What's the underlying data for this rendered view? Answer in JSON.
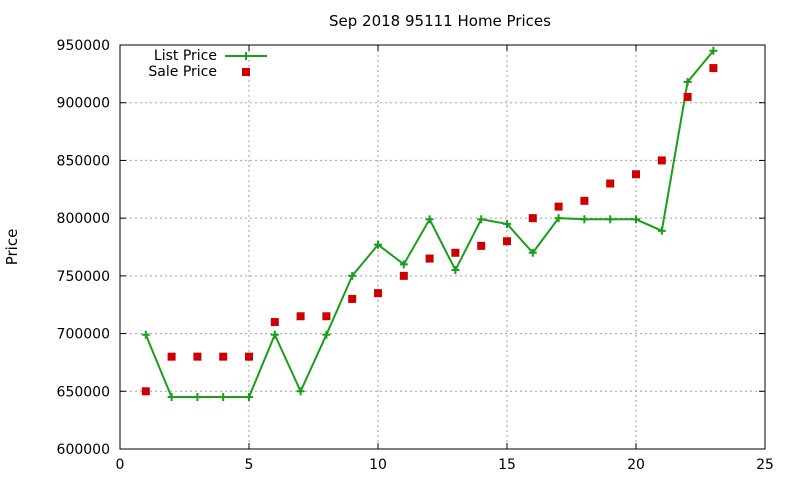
{
  "chart_data": {
    "type": "line",
    "title": "Sep 2018 95111 Home Prices",
    "xlabel": "",
    "ylabel": "Price",
    "xlim": [
      0,
      25
    ],
    "ylim": [
      600000,
      950000
    ],
    "x_ticks": [
      0,
      5,
      10,
      15,
      20,
      25
    ],
    "y_ticks": [
      600000,
      650000,
      700000,
      750000,
      800000,
      850000,
      900000,
      950000
    ],
    "grid": true,
    "legend_position": "top-left",
    "series": [
      {
        "name": "List Price",
        "style": "line-with-plus-markers",
        "color": "#1a9e1a",
        "x": [
          1,
          2,
          3,
          4,
          5,
          6,
          7,
          8,
          9,
          10,
          11,
          12,
          13,
          14,
          15,
          16,
          17,
          18,
          19,
          20,
          21,
          22,
          23
        ],
        "values": [
          699000,
          645000,
          645000,
          645000,
          645000,
          699000,
          650000,
          699000,
          750000,
          777000,
          760000,
          799000,
          755000,
          799000,
          795000,
          770000,
          800000,
          799000,
          799000,
          799000,
          789000,
          918000,
          945000
        ]
      },
      {
        "name": "Sale Price",
        "style": "square-markers",
        "color": "#cc0000",
        "x": [
          1,
          2,
          3,
          4,
          5,
          6,
          7,
          8,
          9,
          10,
          11,
          12,
          13,
          14,
          15,
          16,
          17,
          18,
          19,
          20,
          21,
          22,
          23
        ],
        "values": [
          650000,
          680000,
          680000,
          680000,
          680000,
          710000,
          715000,
          715000,
          730000,
          735000,
          750000,
          765000,
          770000,
          776000,
          780000,
          800000,
          810000,
          815000,
          830000,
          838000,
          850000,
          905000,
          930000
        ]
      }
    ]
  }
}
